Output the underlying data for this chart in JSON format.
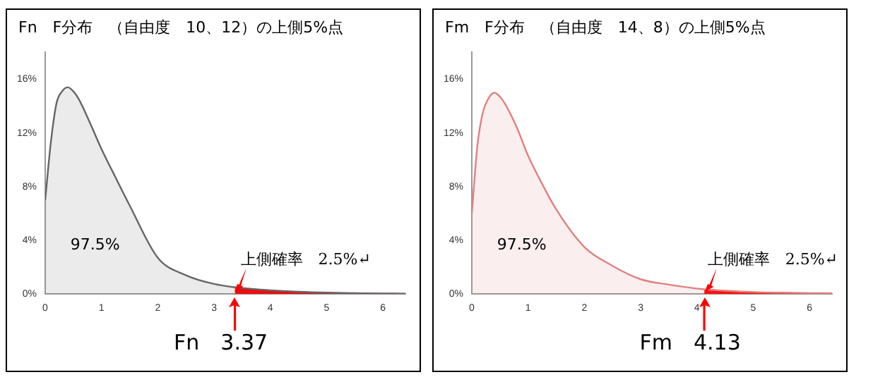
{
  "chart_data": [
    {
      "type": "area",
      "title": "Fn　F分布　（自由度　10、12）の上側5%点",
      "xlim": [
        0,
        6.4
      ],
      "xticks": [
        0,
        1,
        2,
        3,
        4,
        5,
        6
      ],
      "ylim": [
        0,
        18
      ],
      "yticks": [
        {
          "value": 0,
          "label": "0%"
        },
        {
          "value": 4,
          "label": "4%"
        },
        {
          "value": 8,
          "label": "8%"
        },
        {
          "value": 12,
          "label": "12%"
        },
        {
          "value": 16,
          "label": "16%"
        }
      ],
      "grid": false,
      "legend": false,
      "series": [
        {
          "color": "#666666",
          "x": [
            0,
            0.1,
            0.2,
            0.3,
            0.4,
            0.5,
            0.6,
            0.8,
            1.0,
            1.2,
            1.5,
            2.0,
            2.5,
            3.0,
            3.37,
            3.5,
            4,
            4.5,
            5,
            5.5,
            6,
            6.4
          ],
          "values": [
            7.0,
            11.3,
            14.2,
            15.1,
            15.4,
            15.1,
            14.5,
            12.7,
            10.8,
            9.1,
            6.6,
            2.7,
            1.4,
            0.75,
            0.5,
            0.45,
            0.28,
            0.17,
            0.1,
            0.06,
            0.04,
            0.03
          ]
        },
        {
          "color": "#ff0000",
          "x": [
            3.37,
            3.5,
            4,
            4.5,
            5,
            5.5,
            6,
            6.4
          ],
          "values": [
            0.5,
            0.45,
            0.28,
            0.17,
            0.1,
            0.06,
            0.04,
            0.03
          ]
        }
      ],
      "ref_lines": [
        {
          "axis": "x",
          "value": 3.37,
          "label": "Fn　3.37",
          "color": "#ff0000"
        }
      ],
      "annotations": [
        "97.5%",
        "上側確率　2.5%↵"
      ]
    },
    {
      "type": "area",
      "title": "Fm　F分布　（自由度　14、8）の上側5%点",
      "xlim": [
        0,
        6.4
      ],
      "xticks": [
        0,
        1,
        2,
        3,
        4,
        5,
        6
      ],
      "ylim": [
        0,
        18
      ],
      "yticks": [
        {
          "value": 0,
          "label": "0%"
        },
        {
          "value": 4,
          "label": "4%"
        },
        {
          "value": 8,
          "label": "8%"
        },
        {
          "value": 12,
          "label": "12%"
        },
        {
          "value": 16,
          "label": "16%"
        }
      ],
      "grid": false,
      "legend": false,
      "series": [
        {
          "color": "#e08080",
          "x": [
            0,
            0.1,
            0.2,
            0.3,
            0.4,
            0.5,
            0.6,
            0.8,
            1.0,
            1.2,
            1.5,
            2.0,
            2.5,
            3.0,
            3.5,
            4.13,
            4.5,
            5,
            5.5,
            6,
            6.4
          ],
          "values": [
            6.0,
            11.1,
            13.6,
            14.6,
            15.0,
            14.7,
            14.1,
            12.4,
            10.3,
            8.6,
            6.3,
            3.5,
            2.1,
            1.1,
            0.7,
            0.35,
            0.25,
            0.15,
            0.1,
            0.07,
            0.05
          ]
        },
        {
          "color": "#ff0000",
          "x": [
            4.13,
            4.5,
            5,
            5.5,
            6,
            6.4
          ],
          "values": [
            0.35,
            0.25,
            0.15,
            0.1,
            0.07,
            0.05
          ]
        }
      ],
      "ref_lines": [
        {
          "axis": "x",
          "value": 4.13,
          "label": "Fm　4.13",
          "color": "#ff0000"
        }
      ],
      "annotations": [
        "97.5%",
        "上側確率　2.5%↵"
      ]
    }
  ]
}
